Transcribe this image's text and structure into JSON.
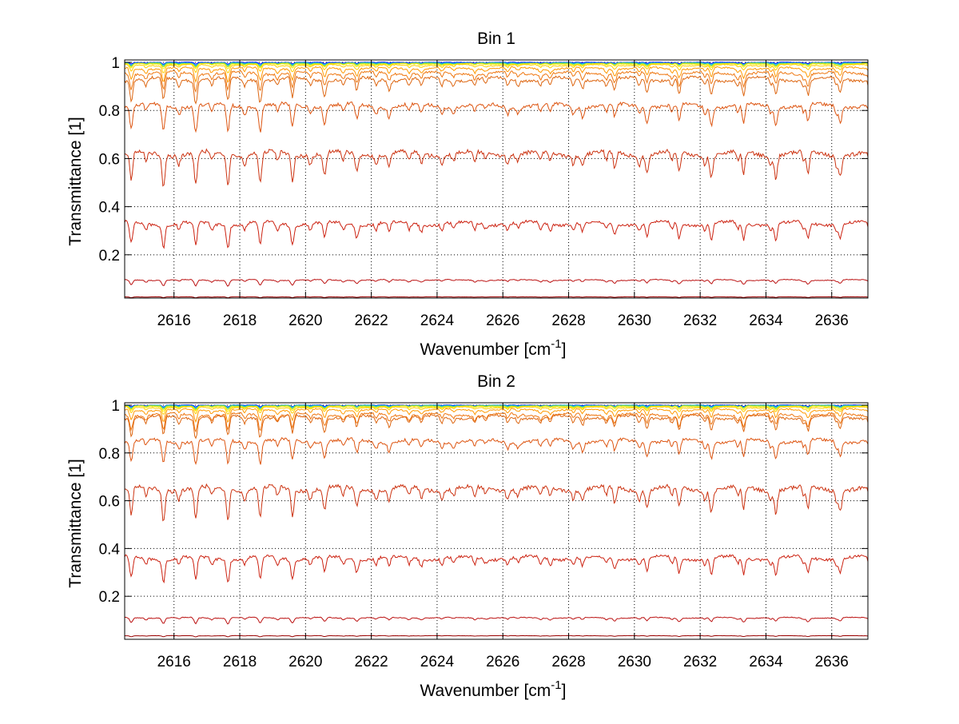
{
  "chart_data": [
    {
      "type": "line",
      "title": "Bin 1",
      "xlabel": "Wavenumber [cm",
      "xlabel_sup": "-1",
      "xlabel_end": "]",
      "ylabel": "Transmittance [1]",
      "xlim": [
        2614.5,
        2637.1
      ],
      "ylim": [
        0.02,
        1.01
      ],
      "xticks": [
        2616,
        2618,
        2620,
        2622,
        2624,
        2626,
        2628,
        2630,
        2632,
        2634,
        2636
      ],
      "yticks": [
        0.2,
        0.4,
        0.6,
        0.8,
        1
      ],
      "ytick_labels": [
        "0.2",
        "0.4",
        "0.6",
        "0.8",
        "1"
      ],
      "grid": true,
      "line_spacing_cm1": 0.98,
      "line_phase_cm1": 2614.7,
      "series": [
        {
          "color": "#0000ff",
          "base": 1.0,
          "depth": 0.006
        },
        {
          "color": "#00aaff",
          "base": 0.998,
          "depth": 0.008
        },
        {
          "color": "#33cc99",
          "base": 0.997,
          "depth": 0.01
        },
        {
          "color": "#aadd33",
          "base": 0.995,
          "depth": 0.012
        },
        {
          "color": "#ffee00",
          "base": 0.993,
          "depth": 0.016
        },
        {
          "color": "#ffcc00",
          "base": 0.988,
          "depth": 0.025
        },
        {
          "color": "#ff9900",
          "base": 0.975,
          "depth": 0.045
        },
        {
          "color": "#ee7711",
          "base": 0.955,
          "depth": 0.06
        },
        {
          "color": "#dd6611",
          "base": 0.93,
          "depth": 0.08
        },
        {
          "color": "#dd5511",
          "base": 0.82,
          "depth": 0.09
        },
        {
          "color": "#cc3311",
          "base": 0.62,
          "depth": 0.11
        },
        {
          "color": "#cc2211",
          "base": 0.33,
          "depth": 0.08
        },
        {
          "color": "#bb1111",
          "base": 0.095,
          "depth": 0.02
        },
        {
          "color": "#990000",
          "base": 0.025,
          "depth": 0.003
        }
      ]
    },
    {
      "type": "line",
      "title": "Bin 2",
      "xlabel": "Wavenumber [cm",
      "xlabel_sup": "-1",
      "xlabel_end": "]",
      "ylabel": "Transmittance [1]",
      "xlim": [
        2614.5,
        2637.1
      ],
      "ylim": [
        0.02,
        1.01
      ],
      "xticks": [
        2616,
        2618,
        2620,
        2622,
        2624,
        2626,
        2628,
        2630,
        2632,
        2634,
        2636
      ],
      "yticks": [
        0.2,
        0.4,
        0.6,
        0.8,
        1
      ],
      "ytick_labels": [
        "0.2",
        "0.4",
        "0.6",
        "0.8",
        "1"
      ],
      "grid": true,
      "line_spacing_cm1": 0.98,
      "line_phase_cm1": 2614.7,
      "series": [
        {
          "color": "#0000ff",
          "base": 1.0,
          "depth": 0.006
        },
        {
          "color": "#00aaff",
          "base": 0.999,
          "depth": 0.008
        },
        {
          "color": "#33cc99",
          "base": 0.998,
          "depth": 0.01
        },
        {
          "color": "#aadd33",
          "base": 0.996,
          "depth": 0.012
        },
        {
          "color": "#ffee00",
          "base": 0.994,
          "depth": 0.016
        },
        {
          "color": "#ffcc00",
          "base": 0.99,
          "depth": 0.022
        },
        {
          "color": "#ff9900",
          "base": 0.98,
          "depth": 0.04
        },
        {
          "color": "#ee7711",
          "base": 0.96,
          "depth": 0.055
        },
        {
          "color": "#dd6611",
          "base": 0.95,
          "depth": 0.07
        },
        {
          "color": "#dd5511",
          "base": 0.85,
          "depth": 0.08
        },
        {
          "color": "#cc3311",
          "base": 0.65,
          "depth": 0.11
        },
        {
          "color": "#cc2211",
          "base": 0.36,
          "depth": 0.08
        },
        {
          "color": "#bb1111",
          "base": 0.11,
          "depth": 0.02
        },
        {
          "color": "#990000",
          "base": 0.035,
          "depth": 0.004
        }
      ]
    }
  ]
}
